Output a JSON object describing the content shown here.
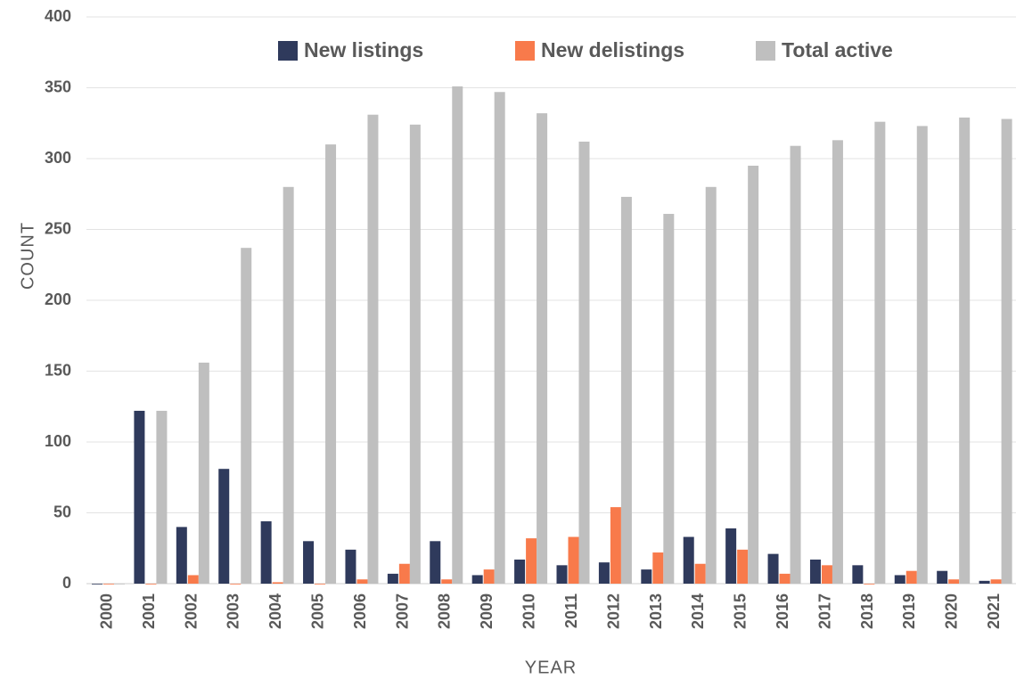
{
  "chart_data": {
    "type": "bar",
    "categories": [
      "2000",
      "2001",
      "2002",
      "2003",
      "2004",
      "2005",
      "2006",
      "2007",
      "2008",
      "2009",
      "2010",
      "2011",
      "2012",
      "2013",
      "2014",
      "2015",
      "2016",
      "2017",
      "2018",
      "2019",
      "2020",
      "2021"
    ],
    "series": [
      {
        "name": "New listings",
        "color": "#2f3a5c",
        "values": [
          0,
          122,
          40,
          81,
          44,
          30,
          24,
          7,
          30,
          6,
          17,
          13,
          15,
          10,
          33,
          39,
          21,
          17,
          13,
          6,
          9,
          2
        ]
      },
      {
        "name": "New delistings",
        "color": "#f87a4b",
        "values": [
          0,
          0,
          6,
          0,
          1,
          0,
          3,
          14,
          3,
          10,
          32,
          33,
          54,
          22,
          14,
          24,
          7,
          13,
          0,
          9,
          3,
          3
        ]
      },
      {
        "name": "Total active",
        "color": "#bfbfbf",
        "values": [
          0,
          122,
          156,
          237,
          280,
          310,
          331,
          324,
          351,
          347,
          332,
          312,
          273,
          261,
          280,
          295,
          309,
          313,
          326,
          323,
          329,
          328
        ]
      }
    ],
    "xlabel": "YEAR",
    "ylabel": "COUNT",
    "ylim": [
      0,
      400
    ],
    "yticks": [
      0,
      50,
      100,
      150,
      200,
      250,
      300,
      350,
      400
    ],
    "grid": true
  }
}
